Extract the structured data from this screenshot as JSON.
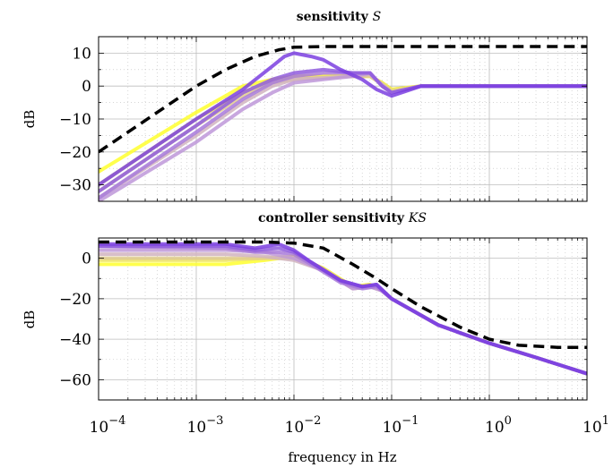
{
  "figure": {
    "xlabel": "frequency in Hz",
    "colors": {
      "bound": "#000000",
      "gradient_start": "#7b3fe0",
      "gradient_mid": "#c9a7d8",
      "gradient_end": "#ffff2e",
      "grid": "#bdbdbd"
    }
  },
  "chart_data": [
    {
      "type": "line",
      "title": "sensitivity S",
      "title_text": "sensitivity ",
      "title_symbol": "S",
      "xlabel": "",
      "ylabel": "dB",
      "xscale": "log",
      "xlim": [
        0.0001,
        10
      ],
      "ylim": [
        -35,
        15
      ],
      "yticks": [
        10,
        0,
        -10,
        -20,
        -30
      ],
      "ytick_labels": [
        "10",
        "0",
        "−10",
        "−20",
        "−30"
      ],
      "grid": "major and minor, dotted",
      "bound": {
        "style": "black dashed",
        "x": [
          0.0001,
          0.0002,
          0.0005,
          0.001,
          0.002,
          0.004,
          0.007,
          0.01,
          0.02,
          0.05,
          0.1,
          1,
          10
        ],
        "y": [
          -20,
          -14,
          -6,
          0,
          5,
          9,
          11,
          11.8,
          12,
          12,
          12,
          12,
          12
        ]
      },
      "series": [
        {
          "x": [
            0.0001,
            0.001,
            0.003,
            0.006,
            0.01,
            0.02,
            0.04,
            0.06,
            0.08,
            0.1,
            0.2,
            1,
            10
          ],
          "y": [
            -26,
            -8,
            0,
            2,
            3,
            3,
            3,
            3,
            1,
            -1,
            0,
            0,
            0
          ]
        },
        {
          "x": [
            0.0001,
            0.001,
            0.003,
            0.006,
            0.01,
            0.02,
            0.04,
            0.06,
            0.08,
            0.1,
            0.2,
            1,
            10
          ],
          "y": [
            -30,
            -10,
            -2,
            2,
            3,
            3,
            3,
            3,
            1,
            -1,
            0,
            0,
            0
          ]
        },
        {
          "x": [
            0.0001,
            0.001,
            0.003,
            0.006,
            0.01,
            0.02,
            0.04,
            0.06,
            0.08,
            0.1,
            0.2,
            1,
            10
          ],
          "y": [
            -32,
            -12,
            -3,
            1,
            2,
            2.5,
            3,
            3,
            0.5,
            -1.5,
            0,
            0,
            0
          ]
        },
        {
          "x": [
            0.0001,
            0.001,
            0.003,
            0.006,
            0.01,
            0.02,
            0.04,
            0.06,
            0.08,
            0.1,
            0.2,
            1,
            10
          ],
          "y": [
            -34,
            -15,
            -5,
            0,
            2,
            2.5,
            3,
            3.5,
            0.5,
            -2,
            0,
            0,
            0
          ]
        },
        {
          "x": [
            0.0001,
            0.001,
            0.003,
            0.006,
            0.01,
            0.02,
            0.04,
            0.06,
            0.08,
            0.1,
            0.2,
            1,
            10
          ],
          "y": [
            -35,
            -17,
            -7,
            -2,
            1,
            2,
            3,
            4,
            0,
            -2,
            0,
            0,
            0
          ]
        },
        {
          "x": [
            0.0001,
            0.001,
            0.003,
            0.006,
            0.01,
            0.02,
            0.04,
            0.06,
            0.08,
            0.1,
            0.2,
            1,
            10
          ],
          "y": [
            -34,
            -14,
            -4,
            1,
            3,
            4,
            4,
            4,
            0,
            -2,
            0,
            0,
            0
          ]
        },
        {
          "x": [
            0.0001,
            0.001,
            0.003,
            0.006,
            0.01,
            0.02,
            0.04,
            0.06,
            0.08,
            0.1,
            0.2,
            1,
            10
          ],
          "y": [
            -32,
            -12,
            -2,
            2,
            4,
            5,
            4,
            4,
            0,
            -2,
            0,
            0,
            0
          ]
        },
        {
          "x": [
            0.0001,
            0.001,
            0.003,
            0.006,
            0.008,
            0.01,
            0.015,
            0.02,
            0.03,
            0.05,
            0.07,
            0.1,
            0.2,
            1,
            10
          ],
          "y": [
            -30,
            -10,
            -1,
            6,
            9,
            10,
            9,
            8,
            5,
            2,
            -1,
            -3,
            0,
            0,
            0
          ]
        }
      ]
    },
    {
      "type": "line",
      "title": "controller sensitivity KS",
      "title_text": "controller sensitivity ",
      "title_symbol": "KS",
      "xlabel": "frequency in Hz",
      "ylabel": "dB",
      "xscale": "log",
      "xlim": [
        0.0001,
        10
      ],
      "xtick_bases": [
        "10",
        "10",
        "10",
        "10",
        "10",
        "10"
      ],
      "xtick_exponents": [
        "−4",
        "−3",
        "−2",
        "−1",
        "0",
        "1"
      ],
      "ylim": [
        -70,
        10
      ],
      "yticks": [
        0,
        -20,
        -40,
        -60
      ],
      "ytick_labels": [
        "0",
        "−20",
        "−40",
        "−60"
      ],
      "grid": "major and minor, dotted",
      "bound": {
        "style": "black dashed",
        "x": [
          0.0001,
          0.001,
          0.005,
          0.01,
          0.02,
          0.04,
          0.07,
          0.1,
          0.2,
          0.5,
          1,
          2,
          5,
          10
        ],
        "y": [
          8,
          8,
          8,
          7.5,
          5,
          -3,
          -10,
          -15,
          -24,
          -34,
          -40,
          -43,
          -44,
          -44
        ]
      },
      "series": [
        {
          "x": [
            0.0001,
            0.002,
            0.005,
            0.01,
            0.02,
            0.04,
            0.06,
            0.08,
            0.1,
            0.3,
            1,
            3,
            10
          ],
          "y": [
            -3,
            -3,
            -1,
            1,
            -5,
            -14,
            -13,
            -16,
            -20,
            -33,
            -42,
            -49,
            -57
          ]
        },
        {
          "x": [
            0.0001,
            0.002,
            0.005,
            0.01,
            0.02,
            0.04,
            0.06,
            0.08,
            0.1,
            0.3,
            1,
            3,
            10
          ],
          "y": [
            -1,
            -1,
            0,
            1,
            -5,
            -14,
            -13,
            -16,
            -20,
            -33,
            -42,
            -49,
            -57
          ]
        },
        {
          "x": [
            0.0001,
            0.002,
            0.005,
            0.01,
            0.02,
            0.04,
            0.06,
            0.08,
            0.1,
            0.3,
            1,
            3,
            10
          ],
          "y": [
            0,
            0,
            0,
            0,
            -6,
            -15,
            -14,
            -16,
            -20,
            -33,
            -42,
            -49,
            -57
          ]
        },
        {
          "x": [
            0.0001,
            0.002,
            0.005,
            0.01,
            0.02,
            0.04,
            0.06,
            0.08,
            0.1,
            0.3,
            1,
            3,
            10
          ],
          "y": [
            2,
            2,
            1,
            -1,
            -6,
            -15,
            -14,
            -16,
            -20,
            -33,
            -42,
            -49,
            -57
          ]
        },
        {
          "x": [
            0.0001,
            0.002,
            0.005,
            0.01,
            0.02,
            0.04,
            0.06,
            0.08,
            0.1,
            0.3,
            1,
            3,
            10
          ],
          "y": [
            4,
            4,
            3,
            0,
            -6,
            -15,
            -14,
            -16,
            -20,
            -33,
            -42,
            -49,
            -57
          ]
        },
        {
          "x": [
            0.0001,
            0.002,
            0.004,
            0.007,
            0.01,
            0.015,
            0.03,
            0.05,
            0.07,
            0.1,
            0.3,
            1,
            3,
            10
          ],
          "y": [
            6,
            5,
            3,
            3,
            2,
            -3,
            -12,
            -15,
            -14,
            -20,
            -33,
            -42,
            -49,
            -57
          ]
        },
        {
          "x": [
            0.0001,
            0.002,
            0.004,
            0.007,
            0.01,
            0.015,
            0.03,
            0.05,
            0.07,
            0.1,
            0.3,
            1,
            3,
            10
          ],
          "y": [
            6,
            6,
            4,
            5,
            3,
            -2,
            -11,
            -14,
            -13,
            -20,
            -33,
            -42,
            -49,
            -57
          ]
        },
        {
          "x": [
            0.0001,
            0.002,
            0.004,
            0.007,
            0.01,
            0.015,
            0.03,
            0.05,
            0.07,
            0.1,
            0.3,
            1,
            3,
            10
          ],
          "y": [
            7,
            7,
            5,
            7,
            4,
            -2,
            -11,
            -14,
            -13,
            -20,
            -33,
            -42,
            -49,
            -57
          ]
        }
      ]
    }
  ]
}
